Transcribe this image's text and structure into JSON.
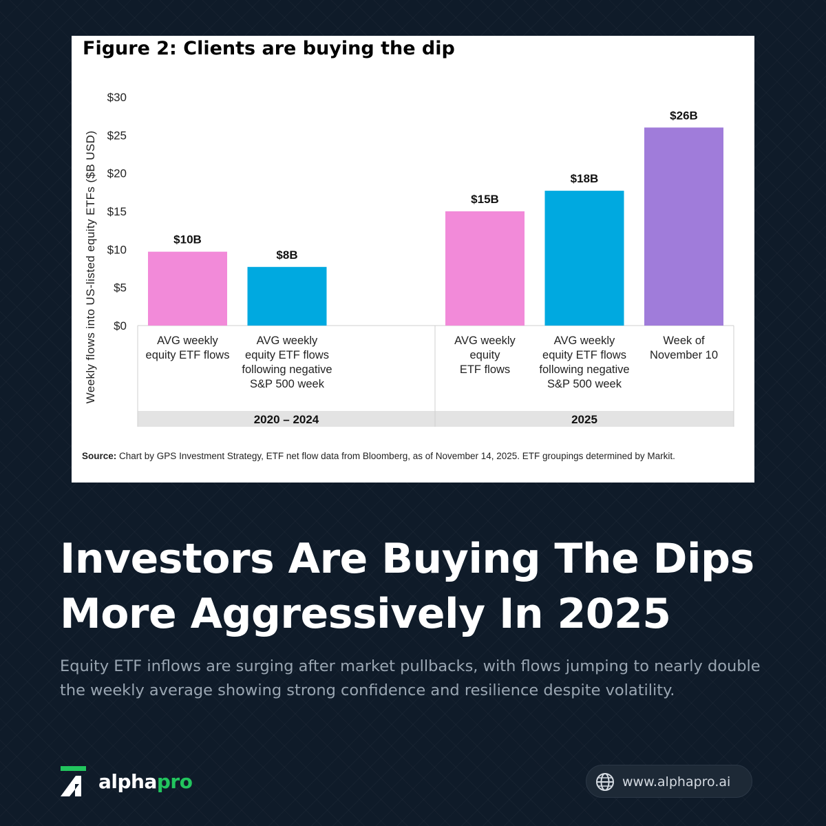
{
  "chart_data": {
    "type": "bar",
    "title": "Figure 2: Clients are buying the dip",
    "ylabel": "Weekly flows into US-listed equity ETFs ($B USD)",
    "ylim": [
      0,
      30
    ],
    "yticks": [
      "$0",
      "$5",
      "$10",
      "$15",
      "$20",
      "$25",
      "$30"
    ],
    "grid": false,
    "groups": [
      {
        "name": "2020 – 2024",
        "bars": [
          {
            "category": [
              "AVG weekly",
              "equity ETF flows"
            ],
            "value": 9.7,
            "label": "$10B",
            "color": "#f28ad9"
          },
          {
            "category": [
              "AVG weekly",
              "equity ETF flows",
              "following negative",
              "S&P 500 week"
            ],
            "value": 7.7,
            "label": "$8B",
            "color": "#00a9e0"
          }
        ]
      },
      {
        "name": "2025",
        "bars": [
          {
            "category": [
              "AVG weekly",
              "equity",
              "ETF flows"
            ],
            "value": 15.0,
            "label": "$15B",
            "color": "#f28ad9"
          },
          {
            "category": [
              "AVG weekly",
              "equity ETF flows",
              "following negative",
              "S&P 500 week"
            ],
            "value": 17.7,
            "label": "$18B",
            "color": "#00a9e0"
          },
          {
            "category": [
              "Week of",
              "November 10"
            ],
            "value": 26.0,
            "label": "$26B",
            "color": "#a07cda"
          }
        ]
      }
    ],
    "source_label": "Source:",
    "source_text": "Chart by GPS Investment Strategy, ETF net flow data from Bloomberg, as of November 14, 2025. ETF groupings determined by Markit."
  },
  "headline": {
    "line1": "Investors Are Buying The Dips",
    "line2": "More Aggressively In 2025"
  },
  "subtitle": "Equity ETF inflows are surging after market pullbacks, with flows jumping to nearly double the weekly average showing strong confidence and resilience despite volatility.",
  "brand": {
    "name_main": "alpha",
    "name_accent": "pro",
    "accent_color": "#22c55e",
    "logo_icon": "alphapro-logo-icon"
  },
  "footer": {
    "url": "www.alphapro.ai",
    "url_icon": "globe-icon"
  }
}
